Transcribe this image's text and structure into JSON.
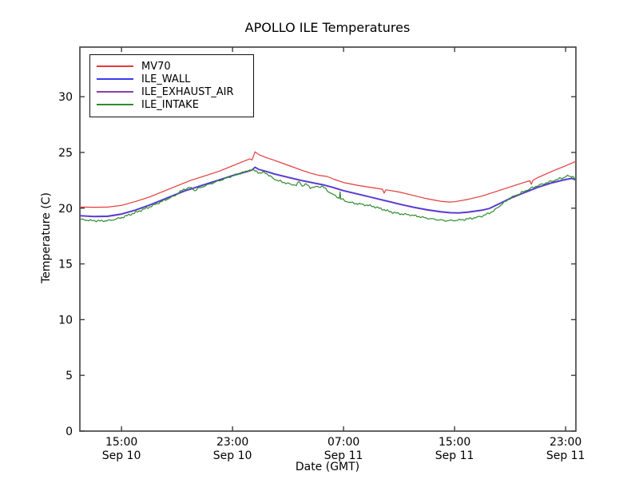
{
  "chart_data": {
    "type": "line",
    "title": "APOLLO ILE Temperatures",
    "xlabel": "Date (GMT)",
    "ylabel": "Temperature (C)",
    "frame_color": "#3d3d3d",
    "background": "#ffffff",
    "xlim_hours": [
      0,
      35.74
    ],
    "ylim": [
      0,
      34.45
    ],
    "x_axis_note": "hours measured from Sep 10 12:00 GMT",
    "y_ticks": [
      0,
      5,
      10,
      15,
      20,
      25,
      30
    ],
    "x_ticks": [
      {
        "hour": 3,
        "time": "15:00",
        "date": "Sep 10"
      },
      {
        "hour": 11,
        "time": "23:00",
        "date": "Sep 10"
      },
      {
        "hour": 19,
        "time": "07:00",
        "date": "Sep 11"
      },
      {
        "hour": 27,
        "time": "15:00",
        "date": "Sep 11"
      },
      {
        "hour": 35,
        "time": "23:00",
        "date": "Sep 11"
      }
    ],
    "legend_position": "upper left",
    "grid": false,
    "draw_order": [
      0,
      2,
      1,
      3
    ],
    "series": [
      {
        "name": "MV70",
        "color": "#e33b3b",
        "noise": 0,
        "points": [
          [
            0,
            20.1
          ],
          [
            1,
            20.08
          ],
          [
            2,
            20.1
          ],
          [
            3,
            20.25
          ],
          [
            4,
            20.6
          ],
          [
            5,
            21.0
          ],
          [
            6,
            21.5
          ],
          [
            7,
            22.0
          ],
          [
            8,
            22.5
          ],
          [
            9,
            22.9
          ],
          [
            10,
            23.3
          ],
          [
            11,
            23.8
          ],
          [
            11.5,
            24.05
          ],
          [
            12,
            24.3
          ],
          [
            12.25,
            24.42
          ],
          [
            12.4,
            24.32
          ],
          [
            12.62,
            25.05
          ],
          [
            12.9,
            24.8
          ],
          [
            13.5,
            24.5
          ],
          [
            14,
            24.3
          ],
          [
            15,
            23.85
          ],
          [
            16,
            23.4
          ],
          [
            16.6,
            23.15
          ],
          [
            17.2,
            22.95
          ],
          [
            17.8,
            22.85
          ],
          [
            18.3,
            22.6
          ],
          [
            19,
            22.3
          ],
          [
            20,
            22.05
          ],
          [
            21,
            21.85
          ],
          [
            21.8,
            21.7
          ],
          [
            21.92,
            21.35
          ],
          [
            22.05,
            21.65
          ],
          [
            23,
            21.45
          ],
          [
            24,
            21.15
          ],
          [
            25,
            20.85
          ],
          [
            26,
            20.62
          ],
          [
            26.6,
            20.55
          ],
          [
            27,
            20.58
          ],
          [
            28,
            20.8
          ],
          [
            29,
            21.1
          ],
          [
            30,
            21.5
          ],
          [
            31,
            21.9
          ],
          [
            32,
            22.3
          ],
          [
            32.42,
            22.45
          ],
          [
            32.52,
            22.15
          ],
          [
            32.65,
            22.5
          ],
          [
            33,
            22.75
          ],
          [
            34,
            23.3
          ],
          [
            35,
            23.8
          ],
          [
            35.74,
            24.2
          ]
        ]
      },
      {
        "name": "ILE_WALL",
        "color": "#3a3af0",
        "noise": 0,
        "points": [
          [
            0,
            19.35
          ],
          [
            1,
            19.28
          ],
          [
            2,
            19.3
          ],
          [
            3,
            19.5
          ],
          [
            4,
            19.85
          ],
          [
            5,
            20.3
          ],
          [
            6,
            20.8
          ],
          [
            7,
            21.3
          ],
          [
            7.6,
            21.6
          ],
          [
            8,
            21.75
          ],
          [
            9,
            22.15
          ],
          [
            10,
            22.55
          ],
          [
            11,
            22.95
          ],
          [
            12,
            23.3
          ],
          [
            12.4,
            23.45
          ],
          [
            12.62,
            23.7
          ],
          [
            12.9,
            23.5
          ],
          [
            13.5,
            23.3
          ],
          [
            14,
            23.1
          ],
          [
            15,
            22.8
          ],
          [
            16,
            22.5
          ],
          [
            17,
            22.25
          ],
          [
            17.6,
            22.1
          ],
          [
            18.2,
            21.9
          ],
          [
            19,
            21.6
          ],
          [
            20,
            21.3
          ],
          [
            21,
            21.0
          ],
          [
            22,
            20.7
          ],
          [
            23,
            20.4
          ],
          [
            24,
            20.12
          ],
          [
            25,
            19.88
          ],
          [
            26,
            19.7
          ],
          [
            26.7,
            19.62
          ],
          [
            27.3,
            19.6
          ],
          [
            28,
            19.68
          ],
          [
            29,
            19.85
          ],
          [
            29.5,
            20.0
          ],
          [
            30,
            20.3
          ],
          [
            30.5,
            20.6
          ],
          [
            31,
            20.9
          ],
          [
            31.5,
            21.15
          ],
          [
            32,
            21.4
          ],
          [
            32.5,
            21.65
          ],
          [
            33,
            21.9
          ],
          [
            33.5,
            22.1
          ],
          [
            34,
            22.3
          ],
          [
            34.5,
            22.45
          ],
          [
            35,
            22.6
          ],
          [
            35.45,
            22.7
          ],
          [
            35.74,
            22.55
          ]
        ]
      },
      {
        "name": "ILE_EXHAUST_AIR",
        "color": "#8a3fa8",
        "noise": 0,
        "points": [
          [
            0,
            19.29
          ],
          [
            1,
            19.22
          ],
          [
            2,
            19.24
          ],
          [
            3,
            19.44
          ],
          [
            4,
            19.79
          ],
          [
            5,
            20.24
          ],
          [
            6,
            20.74
          ],
          [
            7,
            21.24
          ],
          [
            7.6,
            21.54
          ],
          [
            8,
            21.69
          ],
          [
            9,
            22.09
          ],
          [
            10,
            22.49
          ],
          [
            11,
            22.89
          ],
          [
            12,
            23.24
          ],
          [
            12.4,
            23.39
          ],
          [
            12.62,
            23.64
          ],
          [
            12.9,
            23.44
          ],
          [
            13.5,
            23.24
          ],
          [
            14,
            23.04
          ],
          [
            15,
            22.74
          ],
          [
            16,
            22.44
          ],
          [
            17,
            22.19
          ],
          [
            17.6,
            22.04
          ],
          [
            18.2,
            21.84
          ],
          [
            19,
            21.54
          ],
          [
            20,
            21.24
          ],
          [
            21,
            20.94
          ],
          [
            22,
            20.64
          ],
          [
            23,
            20.34
          ],
          [
            24,
            20.06
          ],
          [
            25,
            19.82
          ],
          [
            26,
            19.64
          ],
          [
            26.7,
            19.56
          ],
          [
            27.3,
            19.54
          ],
          [
            28,
            19.62
          ],
          [
            29,
            19.79
          ],
          [
            29.5,
            19.94
          ],
          [
            30,
            20.24
          ],
          [
            30.5,
            20.54
          ],
          [
            31,
            20.84
          ],
          [
            31.5,
            21.09
          ],
          [
            32,
            21.34
          ],
          [
            32.5,
            21.59
          ],
          [
            33,
            21.84
          ],
          [
            33.5,
            22.04
          ],
          [
            34,
            22.24
          ],
          [
            34.5,
            22.39
          ],
          [
            35,
            22.54
          ],
          [
            35.45,
            22.64
          ],
          [
            35.74,
            22.49
          ]
        ]
      },
      {
        "name": "ILE_INTAKE",
        "color": "#2e8b2e",
        "noise": 0.07,
        "points": [
          [
            0,
            19.0
          ],
          [
            0.7,
            18.9
          ],
          [
            1.5,
            18.85
          ],
          [
            2.2,
            18.9
          ],
          [
            3,
            19.15
          ],
          [
            4,
            19.6
          ],
          [
            5,
            20.1
          ],
          [
            6,
            20.65
          ],
          [
            6.8,
            21.1
          ],
          [
            7.5,
            21.7
          ],
          [
            8,
            21.85
          ],
          [
            8.25,
            21.6
          ],
          [
            8.6,
            21.8
          ],
          [
            9,
            22.0
          ],
          [
            10,
            22.45
          ],
          [
            11,
            22.9
          ],
          [
            12,
            23.3
          ],
          [
            12.3,
            23.45
          ],
          [
            12.7,
            23.35
          ],
          [
            13,
            23.1
          ],
          [
            13.3,
            23.25
          ],
          [
            13.7,
            22.85
          ],
          [
            14.2,
            22.5
          ],
          [
            15,
            22.2
          ],
          [
            15.6,
            22.05
          ],
          [
            15.8,
            22.4
          ],
          [
            16,
            22.0
          ],
          [
            16.3,
            22.15
          ],
          [
            16.6,
            21.85
          ],
          [
            17,
            21.9
          ],
          [
            17.5,
            21.95
          ],
          [
            17.9,
            21.5
          ],
          [
            18.4,
            21.1
          ],
          [
            18.7,
            20.9
          ],
          [
            18.75,
            21.45
          ],
          [
            18.8,
            20.85
          ],
          [
            19.2,
            20.6
          ],
          [
            19.7,
            20.45
          ],
          [
            20.3,
            20.35
          ],
          [
            21,
            20.2
          ],
          [
            21.7,
            19.95
          ],
          [
            22.3,
            19.7
          ],
          [
            23,
            19.5
          ],
          [
            23.7,
            19.42
          ],
          [
            24.3,
            19.28
          ],
          [
            25,
            19.1
          ],
          [
            25.7,
            18.98
          ],
          [
            26.3,
            18.88
          ],
          [
            27,
            18.9
          ],
          [
            27.7,
            18.98
          ],
          [
            28.5,
            19.15
          ],
          [
            29,
            19.3
          ],
          [
            29.4,
            19.5
          ],
          [
            29.8,
            19.75
          ],
          [
            30.2,
            20.15
          ],
          [
            30.6,
            20.55
          ],
          [
            31,
            20.9
          ],
          [
            31.5,
            21.2
          ],
          [
            32,
            21.5
          ],
          [
            32.5,
            21.78
          ],
          [
            33,
            22.02
          ],
          [
            33.5,
            22.22
          ],
          [
            34,
            22.42
          ],
          [
            34.5,
            22.62
          ],
          [
            35,
            22.8
          ],
          [
            35.2,
            22.92
          ],
          [
            35.35,
            22.8
          ],
          [
            35.5,
            22.92
          ],
          [
            35.74,
            22.45
          ]
        ]
      }
    ]
  }
}
